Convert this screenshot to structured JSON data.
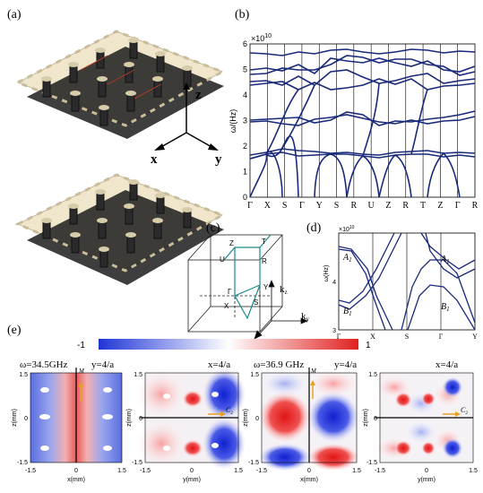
{
  "panels": {
    "a": "(a)",
    "b": "(b)",
    "c": "(c)",
    "d": "(d)",
    "e": "(e)"
  },
  "axes3d": {
    "x": "x",
    "y": "y",
    "z": "z"
  },
  "band_b": {
    "ylabel": "ω/(Hz)",
    "multiplier": "×10",
    "exponent": "10",
    "yticks": [
      "0",
      "1",
      "2",
      "3",
      "4",
      "5",
      "6"
    ],
    "path": [
      "Γ",
      "X",
      "S",
      "Γ",
      "Y",
      "S",
      "R",
      "U",
      "Z",
      "R",
      "T",
      "Z",
      "Γ",
      "R"
    ]
  },
  "bz_c": {
    "points": {
      "Z": "Z",
      "T": "T",
      "U": "U",
      "R": "R",
      "Gamma": "Γ",
      "Y": "Y",
      "X": "X",
      "S": "S"
    },
    "k": {
      "kz": "k",
      "kz_sub": "z",
      "ky": "k",
      "ky_sub": "y",
      "kx": "k",
      "kx_sub": "x"
    }
  },
  "band_d": {
    "ylabel": "ω(Hz)",
    "multiplier": "×10",
    "exponent": "10",
    "yticks": [
      "3",
      "4"
    ],
    "xticks": [
      "Γ",
      "X",
      "S",
      "Γ",
      "Y"
    ],
    "labels": {
      "A1_left": "A",
      "B1_left": "B",
      "A1_right": "A",
      "B1_right": "B",
      "sub": "1"
    }
  },
  "colorbar": {
    "min": "-1",
    "max": "1",
    "colors": {
      "neg": "#1f35d6",
      "mid": "#ffffff",
      "pos": "#e02020"
    }
  },
  "field_panels": [
    {
      "freq": "ω=34.5GHz",
      "cut": "y=4/a",
      "mirror": "M",
      "xlabel": "x(mm)",
      "ylabel": "z(mm)",
      "xticks": [
        "-1.5",
        "0",
        "1.5"
      ],
      "yticks": [
        "1.5",
        "0",
        "-1.5"
      ]
    },
    {
      "cut": "x=4/a",
      "sym": "C",
      "sym_sub": "2",
      "xlabel": "y(mm)",
      "ylabel": "z(mm)",
      "xticks": [
        "-1.5",
        "0",
        "1.5"
      ],
      "yticks": [
        "1.5",
        "0",
        "-1.5"
      ]
    },
    {
      "freq": "ω=36.9 GHz",
      "cut": "y=4/a",
      "mirror": "M",
      "xlabel": "x(mm)",
      "ylabel": "z(mm)",
      "xticks": [
        "-1.5",
        "0",
        "1.5"
      ],
      "yticks": [
        "1.5",
        "0",
        "-1.5"
      ]
    },
    {
      "cut": "x=4/a",
      "sym": "C",
      "sym_sub": "2",
      "xlabel": "y(mm)",
      "ylabel": "z(mm)",
      "xticks": [
        "-1.5",
        "0",
        "1.5"
      ],
      "yticks": [
        "1.5",
        "0",
        "-1.5"
      ]
    }
  ]
}
